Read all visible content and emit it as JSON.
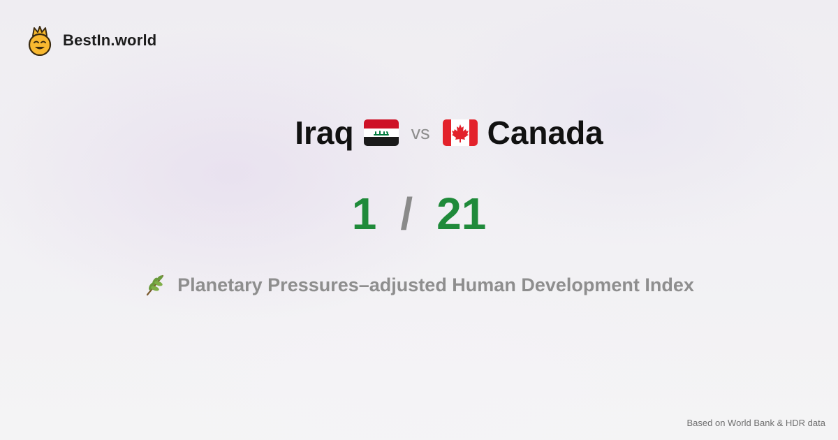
{
  "brand": {
    "name": "BestIn.world",
    "logo_icon": "crown-smiley-icon"
  },
  "comparison": {
    "left_country": "Iraq",
    "left_flag_icon": "iraq-flag-icon",
    "vs_label": "vs",
    "right_country": "Canada",
    "right_flag_icon": "canada-flag-icon"
  },
  "scores": {
    "left": "1",
    "separator": "/",
    "right": "21"
  },
  "metric": {
    "icon": "herb-sprig-icon",
    "label": "Planetary Pressures–adjusted Human Development Index"
  },
  "footer": {
    "source": "Based on World Bank & HDR data"
  },
  "colors": {
    "score": "#1f8a3a",
    "muted": "#8e8e8e",
    "brand": "#f5b52a"
  }
}
